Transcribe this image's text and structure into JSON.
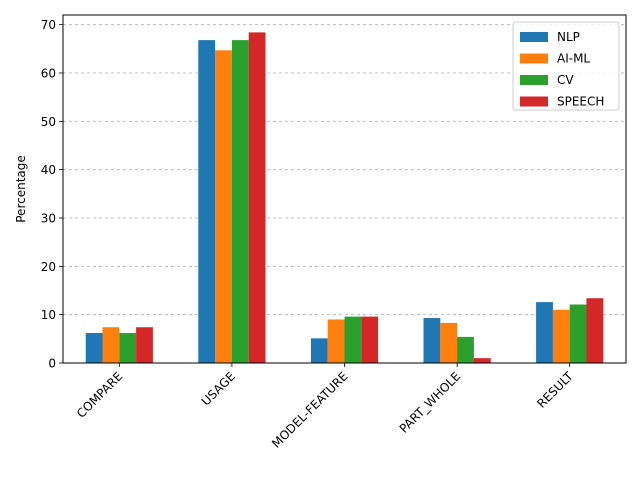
{
  "chart_data": {
    "type": "bar",
    "title": "",
    "xlabel": "",
    "ylabel": "Percentage",
    "ylim": [
      0,
      72
    ],
    "yticks": [
      0,
      10,
      20,
      30,
      40,
      50,
      60,
      70
    ],
    "grid": "y-dashed",
    "legend_position": "top-right",
    "categories": [
      "COMPARE",
      "USAGE",
      "MODEL-FEATURE",
      "PART_WHOLE",
      "RESULT"
    ],
    "series": [
      {
        "name": "NLP",
        "color": "#1f77b4",
        "values": [
          6.2,
          66.8,
          5.1,
          9.3,
          12.6
        ]
      },
      {
        "name": "AI-ML",
        "color": "#ff7f0e",
        "values": [
          7.4,
          64.7,
          9.0,
          8.3,
          11.0
        ]
      },
      {
        "name": "CV",
        "color": "#2ca02c",
        "values": [
          6.2,
          66.8,
          9.6,
          5.4,
          12.1
        ]
      },
      {
        "name": "SPEECH",
        "color": "#d62728",
        "values": [
          7.4,
          68.4,
          9.6,
          1.0,
          13.4
        ]
      }
    ]
  }
}
